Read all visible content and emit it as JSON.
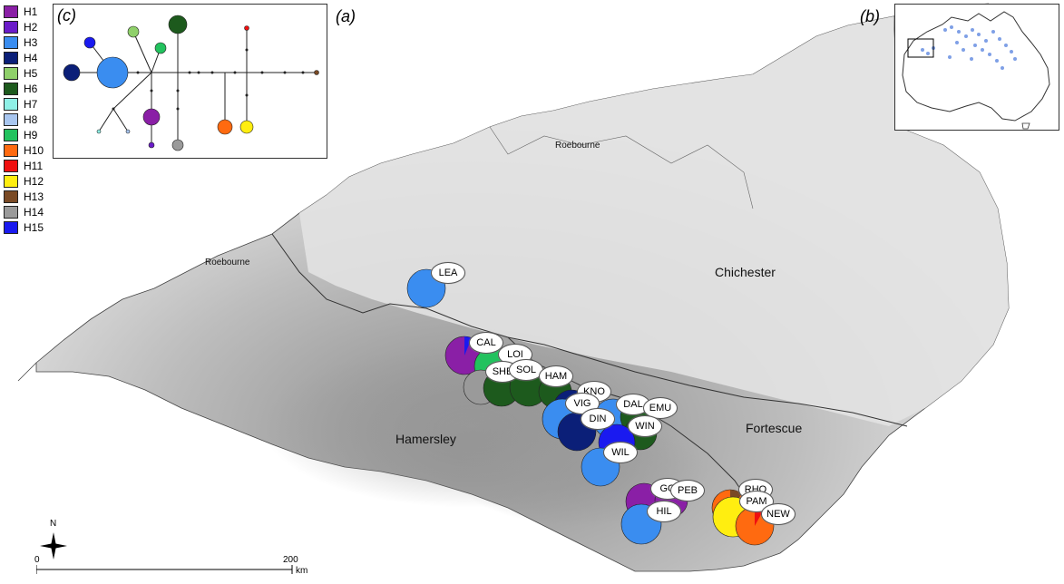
{
  "panels": {
    "a": "(a)",
    "b": "(b)",
    "c": "(c)"
  },
  "legend": [
    {
      "label": "H1",
      "color": "#8a1fa6"
    },
    {
      "label": "H2",
      "color": "#6a1bc9"
    },
    {
      "label": "H3",
      "color": "#3a8df0"
    },
    {
      "label": "H4",
      "color": "#0b1f78"
    },
    {
      "label": "H5",
      "color": "#8fd06a"
    },
    {
      "label": "H6",
      "color": "#1d5a1d"
    },
    {
      "label": "H7",
      "color": "#8ff0e6"
    },
    {
      "label": "H8",
      "color": "#a8c6f0"
    },
    {
      "label": "H9",
      "color": "#22c25e"
    },
    {
      "label": "H10",
      "color": "#ff6a10"
    },
    {
      "label": "H11",
      "color": "#f01010"
    },
    {
      "label": "H12",
      "color": "#ffee10"
    },
    {
      "label": "H13",
      "color": "#7a4a25"
    },
    {
      "label": "H14",
      "color": "#9a9a9a"
    },
    {
      "label": "H15",
      "color": "#1a1af0"
    }
  ],
  "regions": {
    "chichester": "Chichester",
    "hamersley": "Hamersley",
    "fortescue": "Fortescue",
    "roebourne_main": "Roebourne",
    "roebourne_coast": "Roebourne"
  },
  "sites": [
    "LEA",
    "CAL",
    "LOI",
    "SHE",
    "SOL",
    "HAM",
    "KNO",
    "VIG",
    "DAL",
    "EMU",
    "DIN",
    "WIN",
    "WIL",
    "GO",
    "PEB",
    "HIL",
    "RHO",
    "PAM",
    "NEW"
  ],
  "compass": "N",
  "scale": {
    "start": "0",
    "end": "200",
    "unit": "km"
  }
}
